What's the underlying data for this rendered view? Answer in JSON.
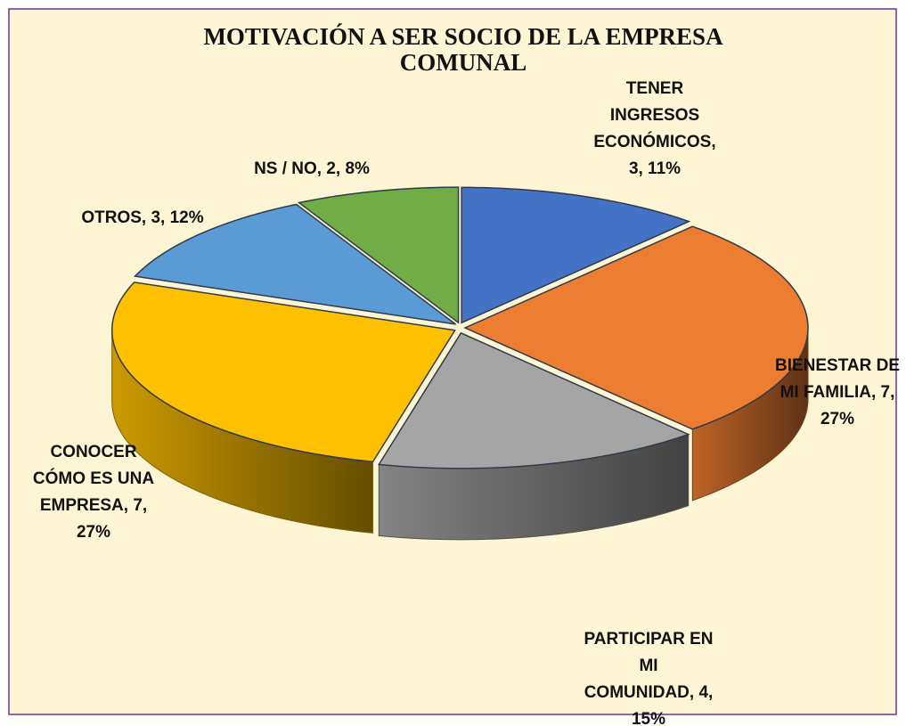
{
  "chart_data": {
    "type": "pie",
    "title": [
      "MOTIVACIÓN A SER SOCIO DE LA EMPRESA",
      "COMUNAL"
    ],
    "values": [
      3,
      7,
      4,
      7,
      3,
      2
    ],
    "value_labels": [
      [
        "TENER",
        "INGRESOS",
        "ECONÓMICOS,",
        "3, 11%"
      ],
      [
        "BIENESTAR DE",
        "MI FAMILIA, 7,",
        "27%"
      ],
      [
        "PARTICIPAR EN",
        "MI",
        "COMUNIDAD, 4,",
        "15%"
      ],
      [
        "CONOCER",
        "CÓMO ES UNA",
        "EMPRESA, 7,",
        "27%"
      ],
      [
        "OTROS, 3, 12%"
      ],
      [
        "NS / NO, 2, 8%"
      ]
    ],
    "colors": [
      "#4472c4",
      "#ed7d31",
      "#a5a5a5",
      "#ffc000",
      "#5b9bd5",
      "#70ad47"
    ]
  }
}
